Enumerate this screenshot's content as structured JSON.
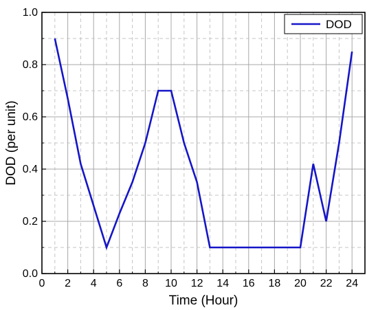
{
  "chart_data": {
    "type": "line",
    "xlabel": "Time (Hour)",
    "ylabel": "DOD (per unit)",
    "xlim": [
      0,
      25
    ],
    "ylim": [
      0.0,
      1.0
    ],
    "x_ticks": [
      0,
      2,
      4,
      6,
      8,
      10,
      12,
      14,
      16,
      18,
      20,
      22,
      24
    ],
    "x_tick_labels": [
      "0",
      "2",
      "4",
      "6",
      "8",
      "10",
      "12",
      "14",
      "16",
      "18",
      "20",
      "22",
      "24"
    ],
    "y_ticks": [
      0.0,
      0.2,
      0.4,
      0.6,
      0.8,
      1.0
    ],
    "y_tick_labels": [
      "0.0",
      "0.2",
      "0.4",
      "0.6",
      "0.8",
      "1.0"
    ],
    "grid": true,
    "legend_position": "top-right",
    "series": [
      {
        "name": "DOD",
        "color": "#1515c8",
        "x": [
          1,
          2,
          3,
          4,
          5,
          6,
          7,
          8,
          9,
          10,
          11,
          12,
          13,
          14,
          15,
          16,
          17,
          18,
          19,
          20,
          21,
          22,
          23,
          24
        ],
        "y": [
          0.9,
          0.67,
          0.42,
          0.26,
          0.1,
          0.23,
          0.35,
          0.5,
          0.7,
          0.7,
          0.5,
          0.35,
          0.1,
          0.1,
          0.1,
          0.1,
          0.1,
          0.1,
          0.1,
          0.1,
          0.42,
          0.2,
          0.5,
          0.85
        ]
      }
    ]
  }
}
